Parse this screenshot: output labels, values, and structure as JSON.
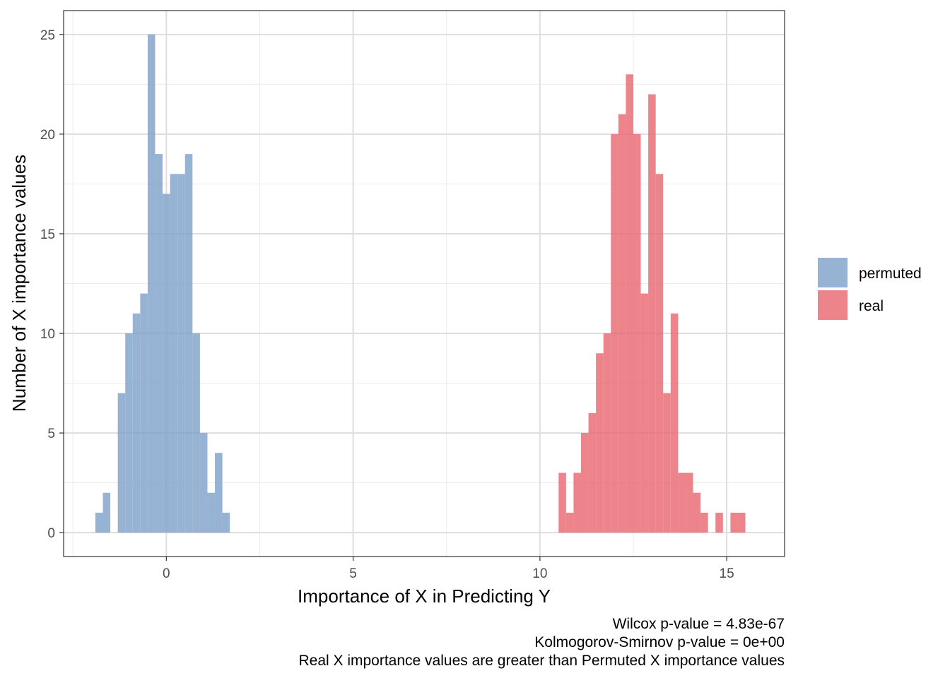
{
  "chart_data": {
    "type": "histogram",
    "xlabel": "Importance of X in Predicting Y",
    "ylabel": "Number of X importance values",
    "xlim": [
      -2.75,
      16.55
    ],
    "ylim": [
      -1.2,
      26.2
    ],
    "x_ticks": [
      0,
      5,
      10,
      15
    ],
    "y_ticks": [
      0,
      5,
      10,
      15,
      20,
      25
    ],
    "x_minor_ticks": [
      -2.5,
      2.5,
      7.5,
      12.5
    ],
    "y_minor_ticks": [
      2.5,
      7.5,
      12.5,
      17.5,
      22.5
    ],
    "bin_width": 0.2,
    "grid": true,
    "legend_position": "right",
    "series": [
      {
        "name": "permuted",
        "color": "#7DA0C8",
        "bin_starts": [
          -1.9,
          -1.7,
          -1.5,
          -1.3,
          -1.1,
          -0.9,
          -0.7,
          -0.5,
          -0.3,
          -0.1,
          0.1,
          0.3,
          0.5,
          0.7,
          0.9,
          1.1,
          1.3,
          1.5,
          1.7
        ],
        "counts": [
          1,
          2,
          0,
          7,
          10,
          11,
          12,
          25,
          19,
          17,
          18,
          18,
          19,
          10,
          5,
          2,
          4,
          1,
          0
        ]
      },
      {
        "name": "real",
        "color": "#E8656F",
        "bin_starts": [
          10.5,
          10.7,
          10.9,
          11.1,
          11.3,
          11.5,
          11.7,
          11.9,
          12.1,
          12.3,
          12.5,
          12.7,
          12.9,
          13.1,
          13.3,
          13.5,
          13.7,
          13.9,
          14.1,
          14.3,
          14.5,
          14.7,
          14.9,
          15.1,
          15.3,
          15.5
        ],
        "counts": [
          3,
          1,
          3,
          5,
          6,
          9,
          10,
          20,
          21,
          23,
          20,
          12,
          22,
          18,
          7,
          11,
          3,
          3,
          2,
          1,
          0,
          1,
          0,
          1,
          1,
          0
        ]
      }
    ],
    "caption": [
      "Wilcox p-value = 4.83e-67",
      "Kolmogorov-Smirnov p-value = 0e+00",
      "Real X importance values are greater than Permuted X importance values"
    ]
  }
}
